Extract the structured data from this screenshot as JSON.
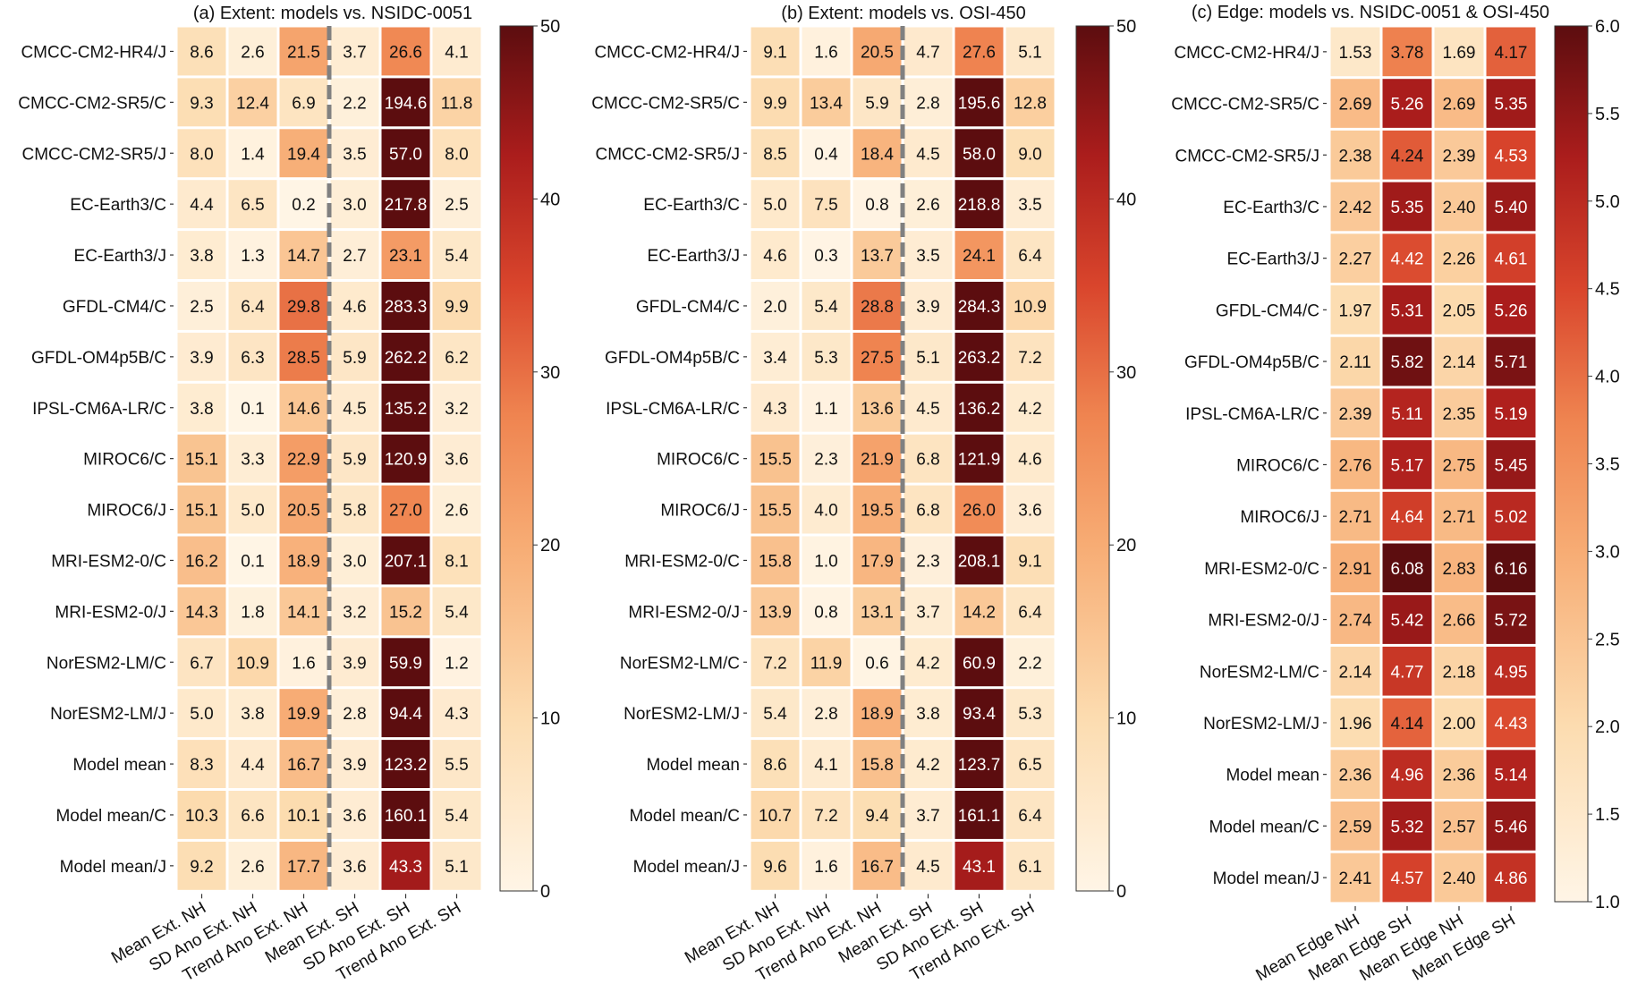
{
  "chart_data": [
    {
      "type": "heatmap",
      "title": "(a) Extent: models vs. NSIDC-0051",
      "rows": [
        "CMCC-CM2-HR4/J",
        "CMCC-CM2-SR5/C",
        "CMCC-CM2-SR5/J",
        "EC-Earth3/C",
        "EC-Earth3/J",
        "GFDL-CM4/C",
        "GFDL-OM4p5B/C",
        "IPSL-CM6A-LR/C",
        "MIROC6/C",
        "MIROC6/J",
        "MRI-ESM2-0/C",
        "MRI-ESM2-0/J",
        "NorESM2-LM/C",
        "NorESM2-LM/J",
        "Model mean",
        "Model mean/C",
        "Model mean/J"
      ],
      "columns": [
        "Mean Ext. NH",
        "SD Ano Ext. NH",
        "Trend Ano Ext. NH",
        "Mean Ext. SH",
        "SD Ano Ext. SH",
        "Trend Ano Ext. SH"
      ],
      "values": [
        [
          "8.6",
          "2.6",
          "21.5",
          "3.7",
          "26.6",
          "4.1"
        ],
        [
          "9.3",
          "12.4",
          "6.9",
          "2.2",
          "194.6",
          "11.8"
        ],
        [
          "8.0",
          "1.4",
          "19.4",
          "3.5",
          "57.0",
          "8.0"
        ],
        [
          "4.4",
          "6.5",
          "0.2",
          "3.0",
          "217.8",
          "2.5"
        ],
        [
          "3.8",
          "1.3",
          "14.7",
          "2.7",
          "23.1",
          "5.4"
        ],
        [
          "2.5",
          "6.4",
          "29.8",
          "4.6",
          "283.3",
          "9.9"
        ],
        [
          "3.9",
          "6.3",
          "28.5",
          "5.9",
          "262.2",
          "6.2"
        ],
        [
          "3.8",
          "0.1",
          "14.6",
          "4.5",
          "135.2",
          "3.2"
        ],
        [
          "15.1",
          "3.3",
          "22.9",
          "5.9",
          "120.9",
          "3.6"
        ],
        [
          "15.1",
          "5.0",
          "20.5",
          "5.8",
          "27.0",
          "2.6"
        ],
        [
          "16.2",
          "0.1",
          "18.9",
          "3.0",
          "207.1",
          "8.1"
        ],
        [
          "14.3",
          "1.8",
          "14.1",
          "3.2",
          "15.2",
          "5.4"
        ],
        [
          "6.7",
          "10.9",
          "1.6",
          "3.9",
          "59.9",
          "1.2"
        ],
        [
          "5.0",
          "3.8",
          "19.9",
          "2.8",
          "94.4",
          "4.3"
        ],
        [
          "8.3",
          "4.4",
          "16.7",
          "3.9",
          "123.2",
          "5.5"
        ],
        [
          "10.3",
          "6.6",
          "10.1",
          "3.6",
          "160.1",
          "5.4"
        ],
        [
          "9.2",
          "2.6",
          "17.7",
          "3.6",
          "43.3",
          "5.1"
        ]
      ],
      "colorbar": {
        "range": [
          0,
          50
        ],
        "ticks": [
          "0",
          "10",
          "20",
          "30",
          "40",
          "50"
        ]
      },
      "divider_after_column": 3
    },
    {
      "type": "heatmap",
      "title": "(b) Extent: models vs. OSI-450",
      "rows": [
        "CMCC-CM2-HR4/J",
        "CMCC-CM2-SR5/C",
        "CMCC-CM2-SR5/J",
        "EC-Earth3/C",
        "EC-Earth3/J",
        "GFDL-CM4/C",
        "GFDL-OM4p5B/C",
        "IPSL-CM6A-LR/C",
        "MIROC6/C",
        "MIROC6/J",
        "MRI-ESM2-0/C",
        "MRI-ESM2-0/J",
        "NorESM2-LM/C",
        "NorESM2-LM/J",
        "Model mean",
        "Model mean/C",
        "Model mean/J"
      ],
      "columns": [
        "Mean Ext. NH",
        "SD Ano Ext. NH",
        "Trend Ano Ext. NH",
        "Mean Ext. SH",
        "SD Ano Ext. SH",
        "Trend Ano Ext. SH"
      ],
      "values": [
        [
          "9.1",
          "1.6",
          "20.5",
          "4.7",
          "27.6",
          "5.1"
        ],
        [
          "9.9",
          "13.4",
          "5.9",
          "2.8",
          "195.6",
          "12.8"
        ],
        [
          "8.5",
          "0.4",
          "18.4",
          "4.5",
          "58.0",
          "9.0"
        ],
        [
          "5.0",
          "7.5",
          "0.8",
          "2.6",
          "218.8",
          "3.5"
        ],
        [
          "4.6",
          "0.3",
          "13.7",
          "3.5",
          "24.1",
          "6.4"
        ],
        [
          "2.0",
          "5.4",
          "28.8",
          "3.9",
          "284.3",
          "10.9"
        ],
        [
          "3.4",
          "5.3",
          "27.5",
          "5.1",
          "263.2",
          "7.2"
        ],
        [
          "4.3",
          "1.1",
          "13.6",
          "4.5",
          "136.2",
          "4.2"
        ],
        [
          "15.5",
          "2.3",
          "21.9",
          "6.8",
          "121.9",
          "4.6"
        ],
        [
          "15.5",
          "4.0",
          "19.5",
          "6.8",
          "26.0",
          "3.6"
        ],
        [
          "15.8",
          "1.0",
          "17.9",
          "2.3",
          "208.1",
          "9.1"
        ],
        [
          "13.9",
          "0.8",
          "13.1",
          "3.7",
          "14.2",
          "6.4"
        ],
        [
          "7.2",
          "11.9",
          "0.6",
          "4.2",
          "60.9",
          "2.2"
        ],
        [
          "5.4",
          "2.8",
          "18.9",
          "3.8",
          "93.4",
          "5.3"
        ],
        [
          "8.6",
          "4.1",
          "15.8",
          "4.2",
          "123.7",
          "6.5"
        ],
        [
          "10.7",
          "7.2",
          "9.4",
          "3.7",
          "161.1",
          "6.4"
        ],
        [
          "9.6",
          "1.6",
          "16.7",
          "4.5",
          "43.1",
          "6.1"
        ]
      ],
      "colorbar": {
        "range": [
          0,
          50
        ],
        "ticks": [
          "0",
          "10",
          "20",
          "30",
          "40",
          "50"
        ]
      },
      "divider_after_column": 3
    },
    {
      "type": "heatmap",
      "title": "(c) Edge: models vs. NSIDC-0051 & OSI-450",
      "rows": [
        "CMCC-CM2-HR4/J",
        "CMCC-CM2-SR5/C",
        "CMCC-CM2-SR5/J",
        "EC-Earth3/C",
        "EC-Earth3/J",
        "GFDL-CM4/C",
        "GFDL-OM4p5B/C",
        "IPSL-CM6A-LR/C",
        "MIROC6/C",
        "MIROC6/J",
        "MRI-ESM2-0/C",
        "MRI-ESM2-0/J",
        "NorESM2-LM/C",
        "NorESM2-LM/J",
        "Model mean",
        "Model mean/C",
        "Model mean/J"
      ],
      "columns": [
        "Mean Edge NH",
        "Mean Edge SH",
        "Mean Edge NH",
        "Mean Edge SH"
      ],
      "values": [
        [
          "1.53",
          "3.78",
          "1.69",
          "4.17"
        ],
        [
          "2.69",
          "5.26",
          "2.69",
          "5.35"
        ],
        [
          "2.38",
          "4.24",
          "2.39",
          "4.53"
        ],
        [
          "2.42",
          "5.35",
          "2.40",
          "5.40"
        ],
        [
          "2.27",
          "4.42",
          "2.26",
          "4.61"
        ],
        [
          "1.97",
          "5.31",
          "2.05",
          "5.26"
        ],
        [
          "2.11",
          "5.82",
          "2.14",
          "5.71"
        ],
        [
          "2.39",
          "5.11",
          "2.35",
          "5.19"
        ],
        [
          "2.76",
          "5.17",
          "2.75",
          "5.45"
        ],
        [
          "2.71",
          "4.64",
          "2.71",
          "5.02"
        ],
        [
          "2.91",
          "6.08",
          "2.83",
          "6.16"
        ],
        [
          "2.74",
          "5.42",
          "2.66",
          "5.72"
        ],
        [
          "2.14",
          "4.77",
          "2.18",
          "4.95"
        ],
        [
          "1.96",
          "4.14",
          "2.00",
          "4.43"
        ],
        [
          "2.36",
          "4.96",
          "2.36",
          "5.14"
        ],
        [
          "2.59",
          "5.32",
          "2.57",
          "5.46"
        ],
        [
          "2.41",
          "4.57",
          "2.40",
          "4.86"
        ]
      ],
      "colorbar": {
        "range": [
          1.0,
          6.0
        ],
        "ticks": [
          "1.0",
          "1.5",
          "2.0",
          "2.5",
          "3.0",
          "3.5",
          "4.0",
          "4.5",
          "5.0",
          "5.5",
          "6.0"
        ]
      },
      "divider_after_column": null
    }
  ]
}
